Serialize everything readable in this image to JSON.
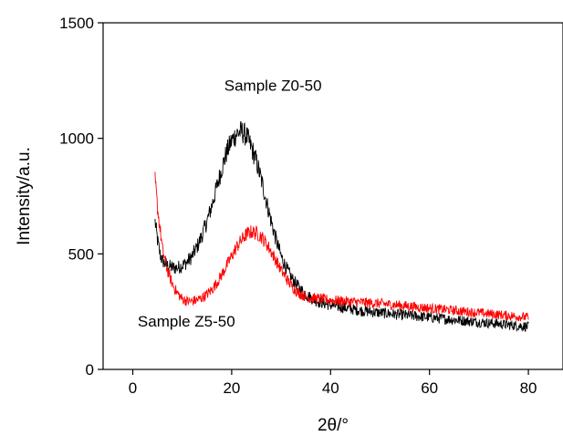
{
  "chart_data": {
    "type": "line",
    "xlabel": "2θ/°",
    "ylabel": "Intensity/a.u.",
    "xlim": [
      -6,
      87
    ],
    "ylim": [
      0,
      1500
    ],
    "xticks": [
      0,
      20,
      40,
      60,
      80
    ],
    "yticks": [
      0,
      500,
      1000,
      1500
    ],
    "grid": false,
    "legend": "none",
    "annotations": [
      {
        "text": "Sample Z0-50",
        "x": 18.5,
        "y": 1205
      },
      {
        "text": "Sample Z5-50",
        "x": 1.0,
        "y": 185
      }
    ],
    "series": [
      {
        "color": "#000000",
        "noise": 40,
        "x": [
          4.5,
          5,
          5.5,
          6,
          7,
          8,
          9,
          10,
          11,
          12,
          13,
          14,
          15,
          16,
          17,
          18,
          19,
          20,
          21,
          22,
          23,
          24,
          25,
          26,
          27,
          28,
          29,
          30,
          31,
          32,
          33,
          34,
          35,
          36,
          37,
          38,
          40,
          42,
          44,
          46,
          48,
          50,
          55,
          60,
          65,
          70,
          75,
          80
        ],
        "y": [
          640,
          560,
          500,
          470,
          450,
          440,
          440,
          450,
          465,
          490,
          530,
          580,
          640,
          710,
          790,
          870,
          940,
          990,
          1020,
          1030,
          1010,
          960,
          900,
          820,
          730,
          640,
          560,
          490,
          440,
          400,
          370,
          345,
          325,
          310,
          298,
          290,
          278,
          270,
          262,
          255,
          250,
          245,
          235,
          225,
          215,
          205,
          195,
          185
        ]
      },
      {
        "color": "#ff0000",
        "noise": 35,
        "x": [
          4.5,
          5,
          6,
          7,
          8,
          9,
          10,
          11,
          12,
          13,
          14,
          15,
          16,
          17,
          18,
          19,
          20,
          21,
          22,
          23,
          24,
          25,
          26,
          27,
          28,
          29,
          30,
          31,
          32,
          33,
          34,
          35,
          36,
          38,
          40,
          45,
          50,
          55,
          60,
          65,
          70,
          75,
          80
        ],
        "y": [
          820,
          700,
          520,
          430,
          370,
          330,
          305,
          295,
          295,
          300,
          310,
          325,
          345,
          375,
          410,
          450,
          490,
          530,
          560,
          585,
          595,
          590,
          575,
          545,
          510,
          470,
          430,
          395,
          365,
          340,
          325,
          315,
          310,
          305,
          300,
          292,
          285,
          275,
          265,
          255,
          245,
          235,
          225
        ]
      }
    ]
  }
}
